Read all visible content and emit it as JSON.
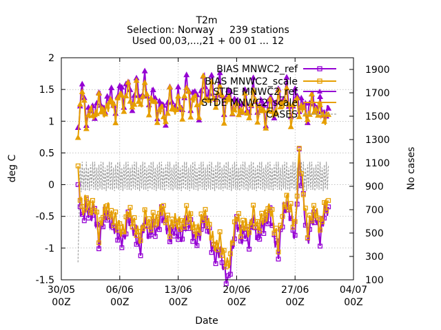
{
  "chart_data": {
    "type": "line",
    "title": "T2m",
    "subtitle_selection": "Selection: Norway     239 stations",
    "subtitle_used": "Used 00,03,...,21 + 00 01 ... 12",
    "xlabel": "Date",
    "ylabel": "deg C",
    "y2label": "No cases",
    "xlim": [
      "2021-05-30T00:00",
      "2021-07-04T00:00"
    ],
    "ylim": [
      -1.5,
      2.0
    ],
    "y2lim": [
      100,
      2000
    ],
    "grid": true,
    "legend_placement": "top-right",
    "x_ticks": [
      {
        "value": "2021-05-30T00:00",
        "label_top": "30/05",
        "label_bottom": "00Z"
      },
      {
        "value": "2021-06-06T00:00",
        "label_top": "06/06",
        "label_bottom": "00Z"
      },
      {
        "value": "2021-06-13T00:00",
        "label_top": "13/06",
        "label_bottom": "00Z"
      },
      {
        "value": "2021-06-20T00:00",
        "label_top": "20/06",
        "label_bottom": "00Z"
      },
      {
        "value": "2021-06-27T00:00",
        "label_top": "27/06",
        "label_bottom": "00Z"
      },
      {
        "value": "2021-07-04T00:00",
        "label_top": "04/07",
        "label_bottom": "00Z"
      }
    ],
    "y_ticks": [
      {
        "value": -1.5,
        "label": "-1.5"
      },
      {
        "value": -1.0,
        "label": "-1"
      },
      {
        "value": -0.5,
        "label": "-0.5"
      },
      {
        "value": 0.0,
        "label": "0"
      },
      {
        "value": 0.5,
        "label": "0.5"
      },
      {
        "value": 1.0,
        "label": "1"
      },
      {
        "value": 1.5,
        "label": "1.5"
      },
      {
        "value": 2.0,
        "label": "2"
      }
    ],
    "y2_ticks": [
      {
        "value": 100,
        "label": "100"
      },
      {
        "value": 300,
        "label": "300"
      },
      {
        "value": 500,
        "label": "500"
      },
      {
        "value": 700,
        "label": "700"
      },
      {
        "value": 900,
        "label": "900"
      },
      {
        "value": 1100,
        "label": "1100"
      },
      {
        "value": 1300,
        "label": "1300"
      },
      {
        "value": 1500,
        "label": "1500"
      },
      {
        "value": 1700,
        "label": "1700"
      },
      {
        "value": 1900,
        "label": "1900"
      }
    ],
    "series": [
      {
        "name": "BIAS MNWC2_ref",
        "color": "#9400d3",
        "marker": "square",
        "axis": "y",
        "x": [
          "2021-06-01T00:00",
          "2021-06-01T12:00",
          "2021-06-02T00:00",
          "2021-06-02T12:00",
          "2021-06-03T00:00",
          "2021-06-03T12:00",
          "2021-06-04T00:00",
          "2021-06-04T12:00",
          "2021-06-05T00:00",
          "2021-06-05T12:00",
          "2021-06-06T00:00",
          "2021-06-06T12:00",
          "2021-06-07T00:00",
          "2021-06-07T12:00",
          "2021-06-08T00:00",
          "2021-06-08T12:00",
          "2021-06-09T00:00",
          "2021-06-09T12:00",
          "2021-06-10T00:00",
          "2021-06-10T12:00",
          "2021-06-11T00:00",
          "2021-06-11T12:00",
          "2021-06-12T00:00",
          "2021-06-12T12:00",
          "2021-06-13T00:00",
          "2021-06-13T12:00",
          "2021-06-14T00:00",
          "2021-06-14T12:00",
          "2021-06-15T00:00",
          "2021-06-15T12:00",
          "2021-06-16T00:00",
          "2021-06-16T12:00",
          "2021-06-17T00:00",
          "2021-06-17T12:00",
          "2021-06-18T00:00",
          "2021-06-18T12:00",
          "2021-06-19T00:00",
          "2021-06-19T12:00",
          "2021-06-20T00:00",
          "2021-06-20T12:00",
          "2021-06-21T00:00",
          "2021-06-21T12:00",
          "2021-06-22T00:00",
          "2021-06-22T12:00",
          "2021-06-23T00:00",
          "2021-06-23T12:00",
          "2021-06-24T00:00",
          "2021-06-24T12:00",
          "2021-06-25T00:00",
          "2021-06-25T12:00",
          "2021-06-26T00:00",
          "2021-06-26T12:00",
          "2021-06-27T00:00",
          "2021-06-27T12:00",
          "2021-06-28T00:00",
          "2021-06-28T12:00",
          "2021-06-29T00:00",
          "2021-06-29T12:00",
          "2021-06-30T00:00",
          "2021-06-30T12:00",
          "2021-07-01T00:00"
        ],
        "y": [
          0.0,
          -0.55,
          -0.35,
          -0.5,
          -0.4,
          -0.95,
          -0.55,
          -0.45,
          -0.6,
          -0.7,
          -0.85,
          -0.9,
          -0.5,
          -0.65,
          -0.85,
          -1.0,
          -0.55,
          -0.8,
          -0.65,
          -0.75,
          -0.45,
          -0.6,
          -0.85,
          -0.7,
          -0.75,
          -0.8,
          -0.55,
          -0.65,
          -0.9,
          -0.85,
          -0.55,
          -0.65,
          -0.95,
          -1.15,
          -1.0,
          -1.35,
          -1.55,
          -1.05,
          -0.55,
          -0.85,
          -0.75,
          -0.9,
          -0.5,
          -0.85,
          -0.7,
          -0.6,
          -0.45,
          -0.8,
          -1.1,
          -0.55,
          -0.3,
          -0.5,
          -0.85,
          0.45,
          -0.25,
          -0.9,
          -0.55,
          -0.5,
          -0.85,
          -0.45,
          -0.35
        ]
      },
      {
        "name": "BIAS MNWC2_scale",
        "color": "#e69f00",
        "marker": "square",
        "axis": "y",
        "x": [
          "2021-06-01T00:00",
          "2021-06-01T12:00",
          "2021-06-02T00:00",
          "2021-06-02T12:00",
          "2021-06-03T00:00",
          "2021-06-03T12:00",
          "2021-06-04T00:00",
          "2021-06-04T12:00",
          "2021-06-05T00:00",
          "2021-06-05T12:00",
          "2021-06-06T00:00",
          "2021-06-06T12:00",
          "2021-06-07T00:00",
          "2021-06-07T12:00",
          "2021-06-08T00:00",
          "2021-06-08T12:00",
          "2021-06-09T00:00",
          "2021-06-09T12:00",
          "2021-06-10T00:00",
          "2021-06-10T12:00",
          "2021-06-11T00:00",
          "2021-06-11T12:00",
          "2021-06-12T00:00",
          "2021-06-12T12:00",
          "2021-06-13T00:00",
          "2021-06-13T12:00",
          "2021-06-14T00:00",
          "2021-06-14T12:00",
          "2021-06-15T00:00",
          "2021-06-15T12:00",
          "2021-06-16T00:00",
          "2021-06-16T12:00",
          "2021-06-17T00:00",
          "2021-06-17T12:00",
          "2021-06-18T00:00",
          "2021-06-18T12:00",
          "2021-06-19T00:00",
          "2021-06-19T12:00",
          "2021-06-20T00:00",
          "2021-06-20T12:00",
          "2021-06-21T00:00",
          "2021-06-21T12:00",
          "2021-06-22T00:00",
          "2021-06-22T12:00",
          "2021-06-23T00:00",
          "2021-06-23T12:00",
          "2021-06-24T00:00",
          "2021-06-24T12:00",
          "2021-06-25T00:00",
          "2021-06-25T12:00",
          "2021-06-26T00:00",
          "2021-06-26T12:00",
          "2021-06-27T00:00",
          "2021-06-27T12:00",
          "2021-06-28T00:00",
          "2021-06-28T12:00",
          "2021-06-29T00:00",
          "2021-06-29T12:00",
          "2021-06-30T00:00",
          "2021-06-30T12:00",
          "2021-07-01T00:00"
        ],
        "y": [
          0.18,
          -0.45,
          -0.25,
          -0.4,
          -0.3,
          -0.8,
          -0.45,
          -0.35,
          -0.5,
          -0.55,
          -0.7,
          -0.75,
          -0.4,
          -0.55,
          -0.7,
          -0.85,
          -0.45,
          -0.65,
          -0.55,
          -0.6,
          -0.35,
          -0.5,
          -0.7,
          -0.55,
          -0.6,
          -0.65,
          -0.45,
          -0.55,
          -0.75,
          -0.7,
          -0.45,
          -0.55,
          -0.8,
          -1.0,
          -0.85,
          -1.15,
          -1.3,
          -0.9,
          -0.45,
          -0.7,
          -0.6,
          -0.75,
          -0.4,
          -0.7,
          -0.55,
          -0.5,
          -0.35,
          -0.65,
          -0.95,
          -0.45,
          -0.2,
          -0.4,
          -0.7,
          0.5,
          -0.15,
          -0.75,
          -0.45,
          -0.4,
          -0.7,
          -0.35,
          -0.25
        ]
      },
      {
        "name": "STDE MNWC2_ref",
        "color": "#9400d3",
        "marker": "triangle",
        "axis": "y",
        "x": [
          "2021-06-01T00:00",
          "2021-06-01T12:00",
          "2021-06-02T00:00",
          "2021-06-02T12:00",
          "2021-06-03T00:00",
          "2021-06-03T12:00",
          "2021-06-04T00:00",
          "2021-06-04T12:00",
          "2021-06-05T00:00",
          "2021-06-05T12:00",
          "2021-06-06T00:00",
          "2021-06-06T12:00",
          "2021-06-07T00:00",
          "2021-06-07T12:00",
          "2021-06-08T00:00",
          "2021-06-08T12:00",
          "2021-06-09T00:00",
          "2021-06-09T12:00",
          "2021-06-10T00:00",
          "2021-06-10T12:00",
          "2021-06-11T00:00",
          "2021-06-11T12:00",
          "2021-06-12T00:00",
          "2021-06-12T12:00",
          "2021-06-13T00:00",
          "2021-06-13T12:00",
          "2021-06-14T00:00",
          "2021-06-14T12:00",
          "2021-06-15T00:00",
          "2021-06-15T12:00",
          "2021-06-16T00:00",
          "2021-06-16T12:00",
          "2021-06-17T00:00",
          "2021-06-17T12:00",
          "2021-06-18T00:00",
          "2021-06-18T12:00",
          "2021-06-19T00:00",
          "2021-06-19T12:00",
          "2021-06-20T00:00",
          "2021-06-20T12:00",
          "2021-06-21T00:00",
          "2021-06-21T12:00",
          "2021-06-22T00:00",
          "2021-06-22T12:00",
          "2021-06-23T00:00",
          "2021-06-23T12:00",
          "2021-06-24T00:00",
          "2021-06-24T12:00",
          "2021-06-25T00:00",
          "2021-06-25T12:00",
          "2021-06-26T00:00",
          "2021-06-26T12:00",
          "2021-06-27T00:00",
          "2021-06-27T12:00",
          "2021-06-28T00:00",
          "2021-06-28T12:00",
          "2021-06-29T00:00",
          "2021-06-29T12:00",
          "2021-06-30T00:00",
          "2021-06-30T12:00",
          "2021-07-01T00:00"
        ],
        "y": [
          0.85,
          1.6,
          1.0,
          1.25,
          1.1,
          1.45,
          1.15,
          1.3,
          1.45,
          1.1,
          1.6,
          1.3,
          1.7,
          1.2,
          1.65,
          1.3,
          1.7,
          1.2,
          1.5,
          1.1,
          1.35,
          1.0,
          1.55,
          1.15,
          1.45,
          1.1,
          1.7,
          1.2,
          1.55,
          1.1,
          1.75,
          1.35,
          1.65,
          1.25,
          1.7,
          1.1,
          1.55,
          1.2,
          1.35,
          1.15,
          1.45,
          1.05,
          1.6,
          1.1,
          1.35,
          1.0,
          1.45,
          1.1,
          1.5,
          1.25,
          1.6,
          1.0,
          1.5,
          1.2,
          1.35,
          1.05,
          1.45,
          1.15,
          1.3,
          1.05,
          1.2
        ]
      },
      {
        "name": "STDE MNWC2_scale",
        "color": "#e69f00",
        "marker": "triangle",
        "axis": "y",
        "x": [
          "2021-06-01T00:00",
          "2021-06-01T12:00",
          "2021-06-02T00:00",
          "2021-06-02T12:00",
          "2021-06-03T00:00",
          "2021-06-03T12:00",
          "2021-06-04T00:00",
          "2021-06-04T12:00",
          "2021-06-05T00:00",
          "2021-06-05T12:00",
          "2021-06-06T00:00",
          "2021-06-06T12:00",
          "2021-06-07T00:00",
          "2021-06-07T12:00",
          "2021-06-08T00:00",
          "2021-06-08T12:00",
          "2021-06-09T00:00",
          "2021-06-09T12:00",
          "2021-06-10T00:00",
          "2021-06-10T12:00",
          "2021-06-11T00:00",
          "2021-06-11T12:00",
          "2021-06-12T00:00",
          "2021-06-12T12:00",
          "2021-06-13T00:00",
          "2021-06-13T12:00",
          "2021-06-14T00:00",
          "2021-06-14T12:00",
          "2021-06-15T00:00",
          "2021-06-15T12:00",
          "2021-06-16T00:00",
          "2021-06-16T12:00",
          "2021-06-17T00:00",
          "2021-06-17T12:00",
          "2021-06-18T00:00",
          "2021-06-18T12:00",
          "2021-06-19T00:00",
          "2021-06-19T12:00",
          "2021-06-20T00:00",
          "2021-06-20T12:00",
          "2021-06-21T00:00",
          "2021-06-21T12:00",
          "2021-06-22T00:00",
          "2021-06-22T12:00",
          "2021-06-23T00:00",
          "2021-06-23T12:00",
          "2021-06-24T00:00",
          "2021-06-24T12:00",
          "2021-06-25T00:00",
          "2021-06-25T12:00",
          "2021-06-26T00:00",
          "2021-06-26T12:00",
          "2021-06-27T00:00",
          "2021-06-27T12:00",
          "2021-06-28T00:00",
          "2021-06-28T12:00",
          "2021-06-29T00:00",
          "2021-06-29T12:00",
          "2021-06-30T00:00",
          "2021-06-30T12:00",
          "2021-07-01T00:00"
        ],
        "y": [
          0.8,
          1.55,
          0.95,
          1.2,
          1.05,
          1.35,
          1.1,
          1.2,
          1.35,
          1.05,
          1.5,
          1.2,
          1.6,
          1.15,
          1.55,
          1.2,
          1.6,
          1.15,
          1.4,
          1.05,
          1.25,
          0.95,
          1.45,
          1.1,
          1.35,
          1.05,
          1.6,
          1.15,
          1.45,
          1.05,
          1.65,
          1.25,
          1.55,
          1.2,
          1.6,
          1.05,
          1.45,
          1.15,
          1.25,
          1.1,
          1.35,
          1.0,
          1.5,
          1.05,
          1.25,
          0.95,
          1.35,
          1.05,
          1.4,
          1.2,
          1.5,
          0.95,
          1.4,
          1.15,
          1.25,
          1.0,
          1.35,
          1.1,
          1.2,
          1.0,
          1.1
        ]
      },
      {
        "name": "CASES",
        "color": "#a0a0a0",
        "marker": "none",
        "dash": "dashed",
        "axis": "y2",
        "x": [
          "2021-06-01T00:00",
          "2021-06-01T03:00",
          "2021-06-01T06:00",
          "2021-06-01T09:00",
          "2021-06-01T12:00",
          "2021-06-02T00:00",
          "2021-06-03T00:00",
          "2021-06-04T00:00",
          "2021-06-05T00:00",
          "2021-06-06T00:00",
          "2021-06-07T00:00",
          "2021-06-08T00:00",
          "2021-06-09T00:00",
          "2021-06-10T00:00",
          "2021-06-11T00:00",
          "2021-06-12T00:00",
          "2021-06-13T00:00",
          "2021-06-14T00:00",
          "2021-06-15T00:00",
          "2021-06-16T00:00",
          "2021-06-17T00:00",
          "2021-06-18T00:00",
          "2021-06-19T00:00",
          "2021-06-20T00:00",
          "2021-06-21T00:00",
          "2021-06-22T00:00",
          "2021-06-23T00:00",
          "2021-06-24T00:00",
          "2021-06-25T00:00",
          "2021-06-26T00:00",
          "2021-06-27T00:00",
          "2021-06-28T00:00",
          "2021-06-29T00:00",
          "2021-06-30T00:00",
          "2021-07-01T00:00"
        ],
        "y": [
          250,
          700,
          1100,
          850,
          1050,
          880,
          1090,
          860,
          1100,
          870,
          1090,
          880,
          1100,
          860,
          1090,
          870,
          1100,
          880,
          1090,
          860,
          1100,
          870,
          1090,
          880,
          1100,
          860,
          1090,
          870,
          1100,
          880,
          1090,
          860,
          1100,
          870,
          1080
        ],
        "oscillation": {
          "low": 860,
          "high": 1110,
          "period_hours": 3
        }
      }
    ]
  }
}
